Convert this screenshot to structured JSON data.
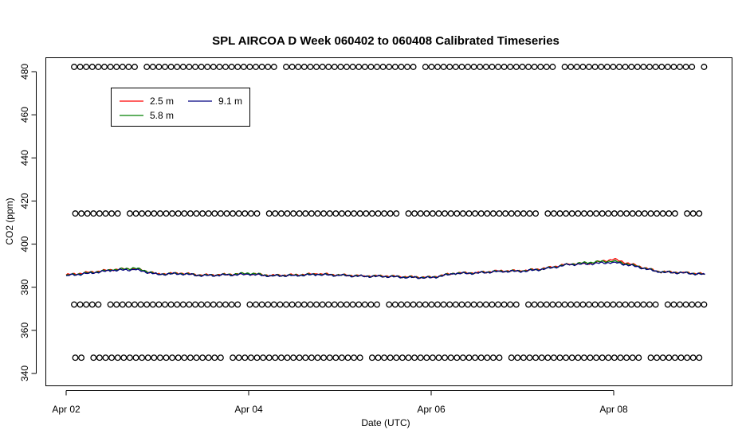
{
  "chart_data": {
    "type": "line",
    "title": "SPL AIRCOA D  Week 060402 to 060408  Calibrated Timeseries",
    "xlabel": "Date (UTC)",
    "ylabel": "CO2 (ppm)",
    "xlim": [
      "2006-04-02 00:00",
      "2006-04-09 05:00"
    ],
    "ylim": [
      334,
      486
    ],
    "xticks": [
      {
        "x": "2006-04-02",
        "label": "Apr 02"
      },
      {
        "x": "2006-04-04",
        "label": "Apr 04"
      },
      {
        "x": "2006-04-06",
        "label": "Apr 06"
      },
      {
        "x": "2006-04-08",
        "label": "Apr 08"
      }
    ],
    "yticks": [
      340,
      360,
      380,
      400,
      420,
      440,
      460,
      480
    ],
    "grid": false,
    "legend_position": "top-left",
    "legend": [
      {
        "name": "2.5 m",
        "color": "#ff0000"
      },
      {
        "name": "5.8 m",
        "color": "#008000"
      },
      {
        "name": "9.1 m",
        "color": "#000080"
      }
    ],
    "calibration_series": [
      {
        "name": "",
        "value": 482.2,
        "marker": "open-circle"
      },
      {
        "name": "",
        "value": 414.2,
        "marker": "open-circle"
      },
      {
        "name": "",
        "value": 372.0,
        "marker": "open-circle"
      },
      {
        "name": "",
        "value": 347.3,
        "marker": "open-circle"
      }
    ],
    "series": [
      {
        "name": "2.5 m",
        "color": "#ff0000",
        "x": [
          "2006-04-02 00:00",
          "2006-04-02 06:00",
          "2006-04-02 12:00",
          "2006-04-02 18:00",
          "2006-04-03 00:00",
          "2006-04-03 06:00",
          "2006-04-03 12:00",
          "2006-04-03 18:00",
          "2006-04-04 00:00",
          "2006-04-04 06:00",
          "2006-04-04 12:00",
          "2006-04-04 18:00",
          "2006-04-05 00:00",
          "2006-04-05 06:00",
          "2006-04-05 12:00",
          "2006-04-05 18:00",
          "2006-04-06 00:00",
          "2006-04-06 06:00",
          "2006-04-06 12:00",
          "2006-04-06 18:00",
          "2006-04-07 00:00",
          "2006-04-07 06:00",
          "2006-04-07 12:00",
          "2006-04-07 18:00",
          "2006-04-08 00:00",
          "2006-04-08 06:00",
          "2006-04-08 12:00",
          "2006-04-08 18:00",
          "2006-04-09 00:00"
        ],
        "values": [
          385.7,
          386.9,
          388.1,
          388.7,
          386.2,
          386.5,
          385.6,
          385.9,
          386.3,
          385.5,
          385.7,
          386.2,
          385.7,
          385.3,
          385.2,
          384.8,
          384.6,
          386.5,
          386.8,
          387.6,
          387.6,
          388.8,
          390.8,
          391.1,
          393.0,
          390.0,
          387.2,
          386.9,
          386.1
        ]
      },
      {
        "name": "5.8 m",
        "color": "#008000",
        "x": [
          "2006-04-02 00:00",
          "2006-04-02 06:00",
          "2006-04-02 12:00",
          "2006-04-02 18:00",
          "2006-04-03 00:00",
          "2006-04-03 06:00",
          "2006-04-03 12:00",
          "2006-04-03 18:00",
          "2006-04-04 00:00",
          "2006-04-04 06:00",
          "2006-04-04 12:00",
          "2006-04-04 18:00",
          "2006-04-05 00:00",
          "2006-04-05 06:00",
          "2006-04-05 12:00",
          "2006-04-05 18:00",
          "2006-04-06 00:00",
          "2006-04-06 06:00",
          "2006-04-06 12:00",
          "2006-04-06 18:00",
          "2006-04-07 00:00",
          "2006-04-07 06:00",
          "2006-04-07 12:00",
          "2006-04-07 18:00",
          "2006-04-08 00:00",
          "2006-04-08 06:00",
          "2006-04-08 12:00",
          "2006-04-08 18:00",
          "2006-04-09 00:00"
        ],
        "values": [
          385.5,
          386.7,
          388.0,
          388.9,
          386.1,
          386.4,
          385.5,
          385.8,
          386.5,
          385.4,
          385.6,
          386.0,
          385.6,
          385.2,
          385.1,
          384.7,
          384.5,
          386.4,
          386.7,
          387.5,
          387.5,
          388.6,
          390.6,
          391.6,
          392.2,
          389.8,
          387.1,
          386.8,
          386.0
        ]
      },
      {
        "name": "9.1 m",
        "color": "#000080",
        "x": [
          "2006-04-02 00:00",
          "2006-04-02 06:00",
          "2006-04-02 12:00",
          "2006-04-02 18:00",
          "2006-04-03 00:00",
          "2006-04-03 06:00",
          "2006-04-03 12:00",
          "2006-04-03 18:00",
          "2006-04-04 00:00",
          "2006-04-04 06:00",
          "2006-04-04 12:00",
          "2006-04-04 18:00",
          "2006-04-05 00:00",
          "2006-04-05 06:00",
          "2006-04-05 12:00",
          "2006-04-05 18:00",
          "2006-04-06 00:00",
          "2006-04-06 06:00",
          "2006-04-06 12:00",
          "2006-04-06 18:00",
          "2006-04-07 00:00",
          "2006-04-07 06:00",
          "2006-04-07 12:00",
          "2006-04-07 18:00",
          "2006-04-08 00:00",
          "2006-04-08 06:00",
          "2006-04-08 12:00",
          "2006-04-08 18:00",
          "2006-04-09 00:00"
        ],
        "values": [
          385.4,
          386.5,
          387.8,
          388.2,
          386.0,
          386.3,
          385.4,
          385.7,
          386.0,
          385.3,
          385.5,
          385.9,
          385.5,
          385.1,
          385.0,
          384.6,
          384.4,
          386.3,
          386.6,
          387.4,
          387.4,
          388.5,
          390.5,
          390.9,
          391.6,
          389.6,
          387.0,
          386.7,
          385.9
        ]
      }
    ]
  }
}
